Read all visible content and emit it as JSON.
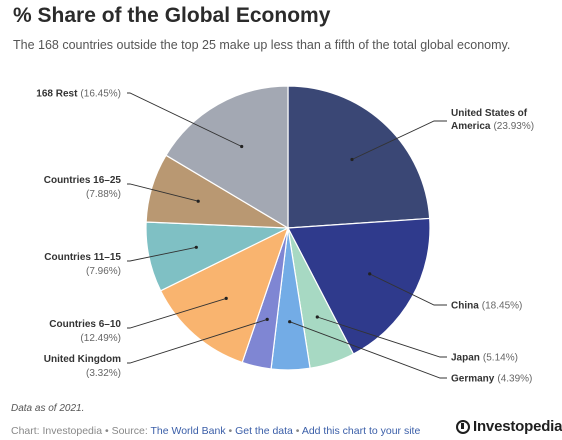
{
  "header": {
    "title": "% Share of the Global Economy",
    "subtitle": "The 168 countries outside the top 25 make up less than a fifth of the total global economy."
  },
  "footer": {
    "note": "Data as of 2021.",
    "credit_prefix": "Chart: Investopedia • Source: ",
    "source_link": "The World Bank",
    "sep1": " • ",
    "get_data": "Get the data",
    "sep2": " • ",
    "add_chart": "Add this chart to your site",
    "logo_text": "Investopedia"
  },
  "chart_data": {
    "type": "pie",
    "title": "% Share of the Global Economy",
    "subtitle": "The 168 countries outside the top 25 make up less than a fifth of the total global economy.",
    "start_angle_deg": 0,
    "direction": "clockwise",
    "slices": [
      {
        "name_lines": [
          "United States of",
          "America"
        ],
        "pct_label": "(23.93%)",
        "value": 23.93,
        "color": "#3a4775"
      },
      {
        "name_lines": [
          "China"
        ],
        "pct_label": "(18.45%)",
        "value": 18.45,
        "color": "#2f3a8c"
      },
      {
        "name_lines": [
          "Japan"
        ],
        "pct_label": "(5.14%)",
        "value": 5.14,
        "color": "#a7d9c3"
      },
      {
        "name_lines": [
          "Germany"
        ],
        "pct_label": "(4.39%)",
        "value": 4.39,
        "color": "#73ace6"
      },
      {
        "name_lines": [
          "United Kingdom"
        ],
        "pct_label": "(3.32%)",
        "value": 3.32,
        "color": "#7f86d3"
      },
      {
        "name_lines": [
          "Countries 6–10"
        ],
        "pct_label": "(12.49%)",
        "value": 12.49,
        "color": "#f9b46f"
      },
      {
        "name_lines": [
          "Countries 11–15"
        ],
        "pct_label": "(7.96%)",
        "value": 7.96,
        "color": "#7fc0c4"
      },
      {
        "name_lines": [
          "Countries 16–25"
        ],
        "pct_label": "(7.88%)",
        "value": 7.88,
        "color": "#b99872"
      },
      {
        "name_lines": [
          "168 Rest"
        ],
        "pct_label": "(16.45%)",
        "value": 16.45,
        "color": "#a3a8b3"
      }
    ]
  }
}
